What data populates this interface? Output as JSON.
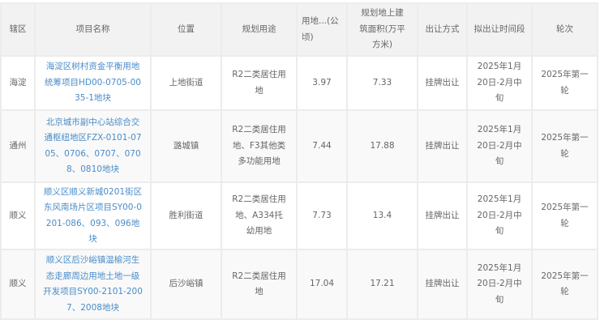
{
  "table": {
    "headers": [
      "辖区",
      "项目名称",
      "位置",
      "规划用途",
      "用地...(公顷)",
      "规划地上建筑面积(万平方米)",
      "出让方式",
      "拟出让时间段",
      "轮次"
    ],
    "rows": [
      [
        "海淀",
        "海淀区树村资金平衡用地统筹项目HD00-0705-0035-1地块",
        "上地街道",
        "R2二类居住用地",
        "3.97",
        "7.33",
        "挂牌出让",
        "2025年1月20日-2月中旬",
        "2025年第一轮"
      ],
      [
        "通州",
        "北京城市副中心站综合交通枢纽地区FZX-0101-0705、0706、0707、0708、0810地块",
        "潞城镇",
        "R2二类居住用地、F3其他类多功能用地",
        "7.44",
        "17.88",
        "挂牌出让",
        "2025年1月20日-2月中旬",
        "2025年第一轮"
      ],
      [
        "顺义",
        "顺义区顺义新城0201街区东风南场片区项目SY00-0201-086、093、096地块",
        "胜利街道",
        "R2二类居住用地、A334托幼用地",
        "7.73",
        "13.4",
        "挂牌出让",
        "2025年1月20日-2月中旬",
        "2025年第一轮"
      ],
      [
        "顺义",
        "顺义区后沙峪镇温榆河生态走廊周边用地土地一级开发项目SY00-2101-2007、2008地块",
        "后沙峪镇",
        "R2二类居住用地",
        "17.04",
        "17.21",
        "挂牌出让",
        "2025年1月20日-2月中旬",
        "2025年第一轮"
      ]
    ]
  },
  "colors": {
    "link": "#4a8cc8",
    "header_bg": "#f2f2f2",
    "text": "#666666"
  }
}
